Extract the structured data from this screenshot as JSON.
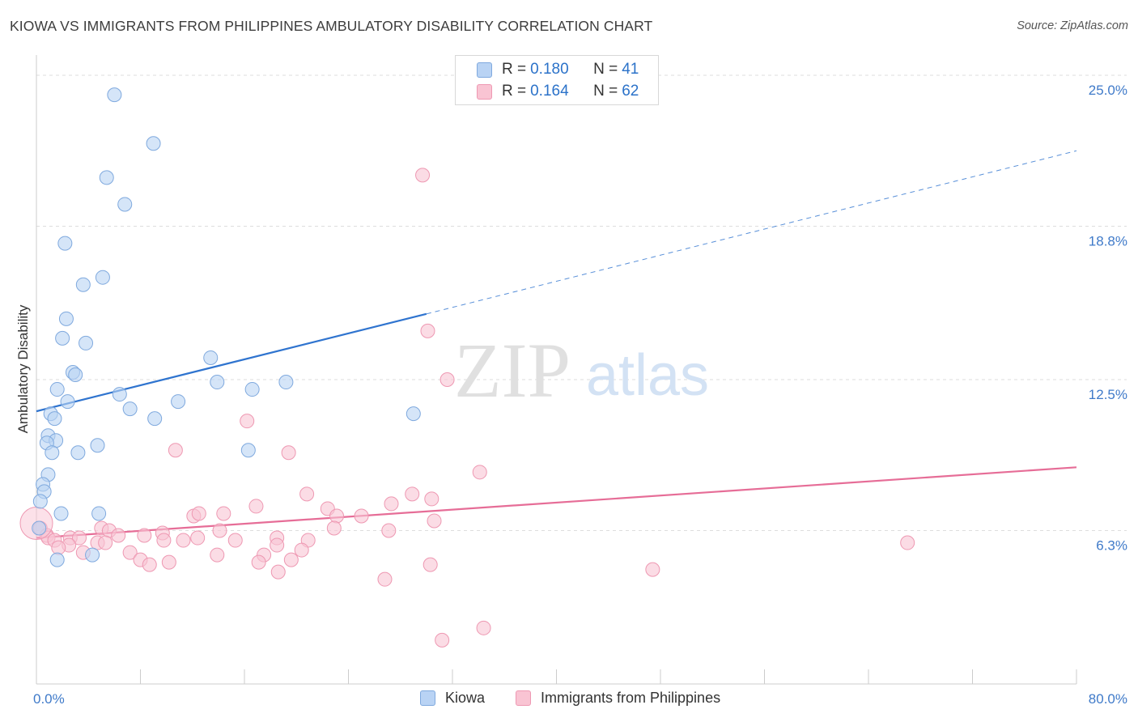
{
  "header": {
    "title": "KIOWA VS IMMIGRANTS FROM PHILIPPINES AMBULATORY DISABILITY CORRELATION CHART",
    "source": "Source: ZipAtlas.com"
  },
  "watermark": {
    "zip": "ZIP",
    "atlas": "atlas"
  },
  "legend": {
    "r_label": "R =",
    "n_label": "N =",
    "entries": [
      {
        "r": "0.180",
        "n": "41"
      },
      {
        "r": "0.164",
        "n": "62"
      }
    ]
  },
  "colors": {
    "kiowa_fill": "#b9d3f4",
    "kiowa_stroke": "#7fa9de",
    "kiowa_line": "#2f74cf",
    "phil_fill": "#f9c4d3",
    "phil_stroke": "#ee98b2",
    "phil_line": "#e66d97",
    "tick_label": "#3f7ac9",
    "grid": "#dedede"
  },
  "chart_data": {
    "type": "scatter",
    "title": "KIOWA VS IMMIGRANTS FROM PHILIPPINES AMBULATORY DISABILITY CORRELATION CHART",
    "ylabel": "Ambulatory Disability",
    "xlabel": "",
    "x_tick_labels": [
      "0.0%",
      "80.0%"
    ],
    "y_tick_labels": [
      "6.3%",
      "12.5%",
      "18.8%",
      "25.0%"
    ],
    "y_ticks": [
      6.3,
      12.5,
      18.8,
      25.0
    ],
    "xlim": [
      0,
      80
    ],
    "ylim": [
      0,
      25.6
    ],
    "grid": true,
    "legend_placement": "top-center",
    "series": [
      {
        "name": "Kiowa",
        "points": [
          [
            6.0,
            24.2
          ],
          [
            9.0,
            22.2
          ],
          [
            5.4,
            20.8
          ],
          [
            6.8,
            19.7
          ],
          [
            2.2,
            18.1
          ],
          [
            5.1,
            16.7
          ],
          [
            3.6,
            16.4
          ],
          [
            2.3,
            15.0
          ],
          [
            2.0,
            14.2
          ],
          [
            3.8,
            14.0
          ],
          [
            13.4,
            13.4
          ],
          [
            2.8,
            12.8
          ],
          [
            3.0,
            12.7
          ],
          [
            13.9,
            12.4
          ],
          [
            19.2,
            12.4
          ],
          [
            16.6,
            12.1
          ],
          [
            1.6,
            12.1
          ],
          [
            6.4,
            11.9
          ],
          [
            2.4,
            11.6
          ],
          [
            10.9,
            11.6
          ],
          [
            7.2,
            11.3
          ],
          [
            1.1,
            11.1
          ],
          [
            29.0,
            11.1
          ],
          [
            9.1,
            10.9
          ],
          [
            1.4,
            10.9
          ],
          [
            0.9,
            10.2
          ],
          [
            1.5,
            10.0
          ],
          [
            0.8,
            9.9
          ],
          [
            4.7,
            9.8
          ],
          [
            3.2,
            9.5
          ],
          [
            16.3,
            9.6
          ],
          [
            1.2,
            9.5
          ],
          [
            0.9,
            8.6
          ],
          [
            0.5,
            8.2
          ],
          [
            0.6,
            7.9
          ],
          [
            0.3,
            7.5
          ],
          [
            1.9,
            7.0
          ],
          [
            4.8,
            7.0
          ],
          [
            0.2,
            6.4
          ],
          [
            1.6,
            5.1
          ],
          [
            4.3,
            5.3
          ]
        ],
        "trend": {
          "x": [
            0,
            30
          ],
          "y": [
            11.2,
            15.2
          ]
        },
        "trend_dashed": {
          "x": [
            30,
            80
          ],
          "y": [
            15.2,
            21.9
          ]
        }
      },
      {
        "name": "Immigrants from Philippines",
        "points": [
          [
            29.7,
            20.9
          ],
          [
            30.1,
            14.5
          ],
          [
            16.2,
            10.8
          ],
          [
            31.6,
            12.5
          ],
          [
            10.7,
            9.6
          ],
          [
            19.4,
            9.5
          ],
          [
            34.1,
            8.7
          ],
          [
            20.8,
            7.8
          ],
          [
            28.9,
            7.8
          ],
          [
            30.4,
            7.6
          ],
          [
            27.3,
            7.4
          ],
          [
            16.9,
            7.3
          ],
          [
            22.4,
            7.2
          ],
          [
            14.4,
            7.0
          ],
          [
            23.1,
            6.9
          ],
          [
            12.1,
            6.9
          ],
          [
            12.5,
            7.0
          ],
          [
            25.0,
            6.9
          ],
          [
            30.6,
            6.7
          ],
          [
            22.9,
            6.4
          ],
          [
            5.0,
            6.4
          ],
          [
            27.1,
            6.3
          ],
          [
            14.1,
            6.3
          ],
          [
            9.7,
            6.2
          ],
          [
            5.6,
            6.3
          ],
          [
            8.3,
            6.1
          ],
          [
            6.3,
            6.1
          ],
          [
            0.3,
            6.4
          ],
          [
            0.8,
            6.1
          ],
          [
            2.6,
            6.0
          ],
          [
            12.4,
            6.0
          ],
          [
            18.5,
            6.0
          ],
          [
            3.3,
            6.0
          ],
          [
            0.9,
            6.0
          ],
          [
            1.4,
            5.9
          ],
          [
            9.8,
            5.9
          ],
          [
            11.3,
            5.9
          ],
          [
            15.3,
            5.9
          ],
          [
            20.9,
            5.9
          ],
          [
            2.5,
            5.7
          ],
          [
            4.7,
            5.8
          ],
          [
            5.3,
            5.8
          ],
          [
            18.5,
            5.7
          ],
          [
            1.7,
            5.6
          ],
          [
            67.0,
            5.8
          ],
          [
            3.6,
            5.4
          ],
          [
            7.2,
            5.4
          ],
          [
            13.9,
            5.3
          ],
          [
            17.5,
            5.3
          ],
          [
            20.4,
            5.5
          ],
          [
            19.6,
            5.1
          ],
          [
            8.0,
            5.1
          ],
          [
            10.2,
            5.0
          ],
          [
            17.1,
            5.0
          ],
          [
            8.7,
            4.9
          ],
          [
            30.3,
            4.9
          ],
          [
            18.6,
            4.6
          ],
          [
            47.4,
            4.7
          ],
          [
            26.8,
            4.3
          ],
          [
            34.4,
            2.3
          ],
          [
            31.2,
            1.8
          ],
          [
            0.0,
            6.6
          ]
        ],
        "trend": {
          "x": [
            0,
            80
          ],
          "y": [
            6.0,
            8.9
          ]
        }
      }
    ]
  },
  "bottom_legend": [
    {
      "label": "Kiowa"
    },
    {
      "label": "Immigrants from Philippines"
    }
  ]
}
